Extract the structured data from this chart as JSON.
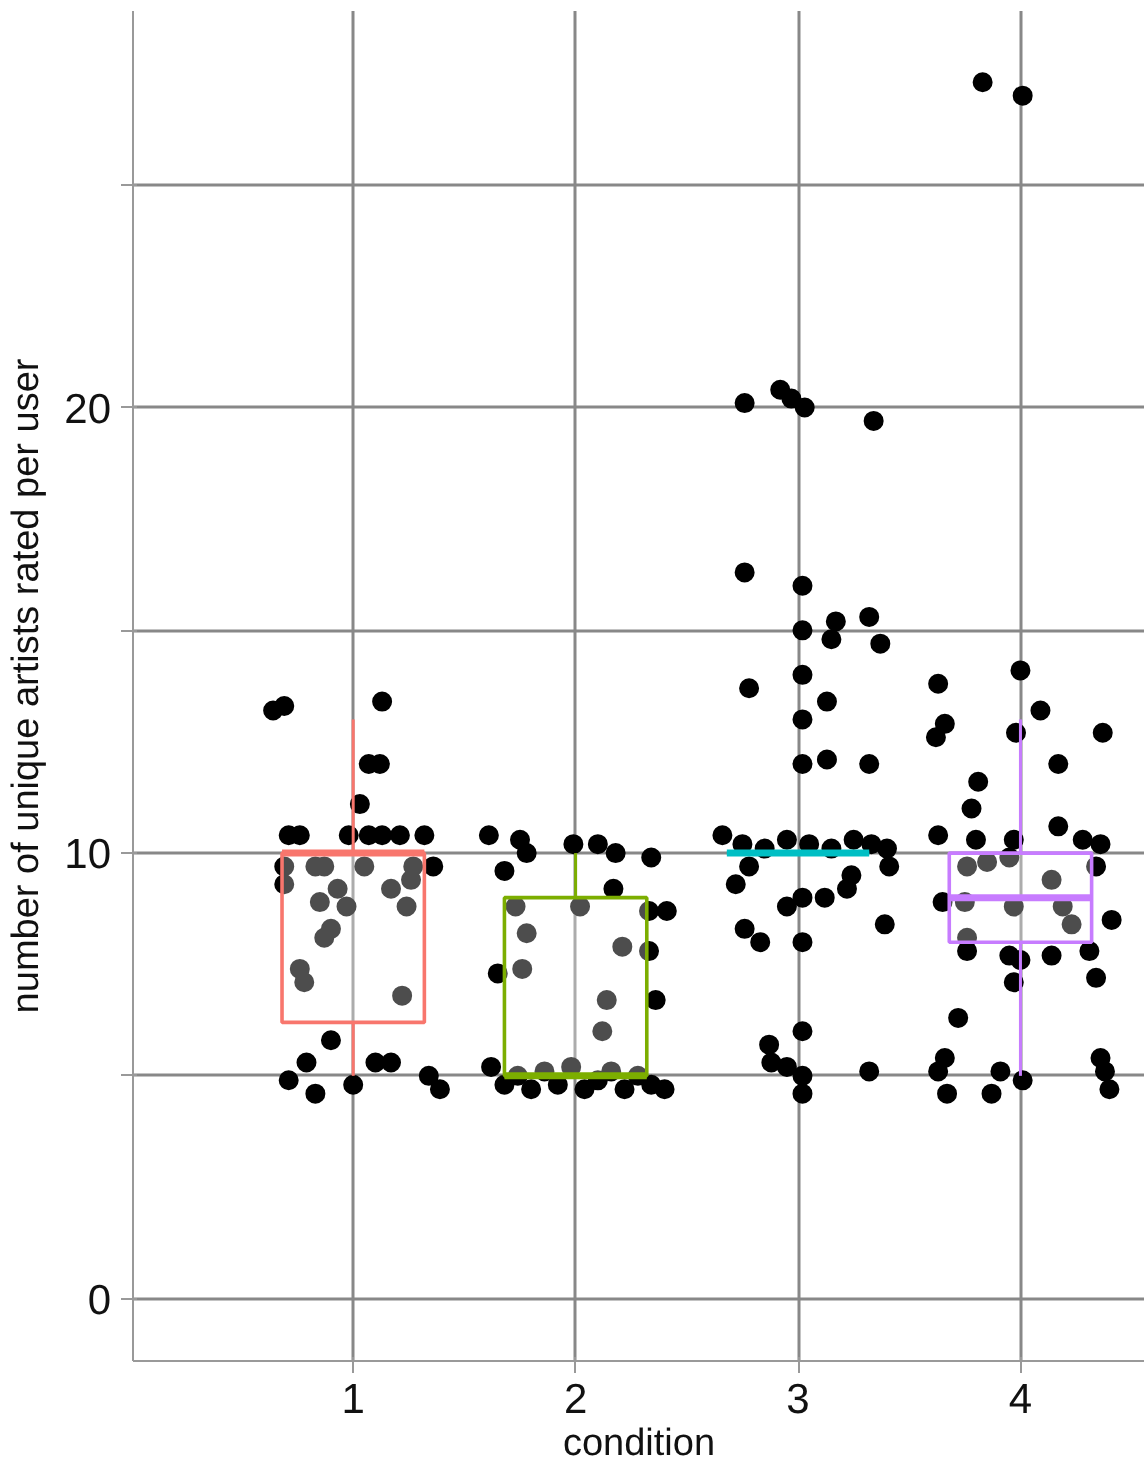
{
  "chart_data": {
    "type": "box",
    "xlabel": "condition",
    "ylabel": "number of unique artists rated per user",
    "x": [
      1,
      2,
      3,
      4
    ],
    "colors": [
      "#f8766d",
      "#7cae00",
      "#00bfc4",
      "#c77cff"
    ],
    "boxes": [
      {
        "low": 5,
        "q1": 6.2,
        "median": 10,
        "q3": 10,
        "high": 13
      },
      {
        "low": 5,
        "q1": 5,
        "median": 5,
        "q3": 9,
        "high": 10
      },
      {
        "low": 10,
        "q1": 10,
        "median": 10,
        "q3": 10,
        "high": 10
      },
      {
        "low": 5,
        "q1": 8,
        "median": 9,
        "q3": 10,
        "high": 13
      }
    ],
    "xlim": [
      0.01,
      4.56
    ],
    "xticks": [
      1,
      2,
      3,
      4
    ],
    "ylim": [
      -1.4,
      28.9
    ],
    "yticks": [
      0,
      {
        "value": 5,
        "label": null
      },
      10,
      {
        "value": 15,
        "label": null
      },
      20,
      {
        "value": 25,
        "label": null
      }
    ],
    "grid": true,
    "marker": "circle",
    "series": [
      {
        "type": "scatter",
        "color": "#000000",
        "x": [
          0.64,
          0.69,
          1.13,
          1.07,
          1.12,
          1.03,
          0.71,
          0.76,
          0.98,
          1.07,
          1.13,
          1.21,
          1.32,
          0.69,
          0.83,
          0.87,
          1.05,
          1.27,
          1.36,
          0.69,
          0.93,
          1.17,
          1.26,
          0.85,
          0.97,
          1.24,
          0.9,
          0.87,
          0.76,
          0.78,
          1.22,
          0.9,
          0.71,
          0.79,
          0.83,
          1.0,
          1.1,
          1.17,
          1.34,
          1.39,
          1.61,
          1.75,
          1.68,
          1.78,
          1.99,
          2.1,
          2.18,
          2.34,
          2.17,
          1.73,
          2.02,
          2.33,
          2.41,
          1.78,
          2.21,
          2.33,
          1.65,
          1.76,
          2.36,
          2.14,
          2.12,
          1.62,
          1.68,
          1.74,
          1.8,
          1.86,
          1.92,
          1.98,
          2.04,
          2.1,
          2.16,
          2.22,
          2.28,
          2.34,
          2.4,
          2.76,
          2.92,
          2.97,
          3.03,
          3.34,
          2.76,
          3.02,
          3.02,
          3.17,
          3.15,
          3.32,
          3.37,
          2.78,
          3.02,
          3.13,
          3.02,
          3.02,
          3.13,
          3.32,
          2.66,
          2.75,
          2.85,
          2.95,
          3.05,
          3.15,
          3.25,
          3.33,
          3.4,
          2.72,
          2.78,
          2.95,
          3.02,
          3.12,
          3.22,
          3.24,
          3.39,
          3.41,
          2.76,
          2.83,
          3.02,
          3.02,
          2.87,
          2.88,
          2.95,
          3.02,
          3.02,
          3.32,
          3.83,
          4.01,
          4.0,
          3.63,
          3.66,
          3.62,
          3.98,
          4.09,
          4.37,
          4.17,
          3.81,
          3.78,
          3.63,
          3.8,
          3.97,
          4.17,
          4.28,
          4.36,
          3.76,
          3.85,
          3.95,
          4.14,
          4.34,
          3.65,
          3.75,
          3.97,
          4.19,
          4.23,
          3.76,
          4.41,
          3.76,
          3.95,
          4.14,
          4.31,
          4.0,
          3.97,
          4.34,
          3.72,
          3.66,
          3.63,
          3.67,
          3.87,
          3.91,
          4.01,
          4.36,
          4.38,
          4.4
        ],
        "values": [
          13.2,
          13.3,
          13.4,
          12.0,
          12.0,
          11.1,
          10.4,
          10.4,
          10.4,
          10.4,
          10.4,
          10.4,
          10.4,
          9.7,
          9.7,
          9.7,
          9.7,
          9.7,
          9.7,
          9.3,
          9.2,
          9.2,
          9.4,
          8.9,
          8.8,
          8.8,
          8.3,
          8.1,
          7.4,
          7.1,
          6.8,
          5.8,
          4.9,
          5.3,
          4.6,
          4.8,
          5.3,
          5.3,
          5.0,
          4.7,
          10.4,
          10.3,
          9.6,
          10.0,
          10.2,
          10.2,
          10.0,
          9.9,
          9.2,
          8.8,
          8.8,
          8.7,
          8.7,
          8.2,
          7.9,
          7.8,
          7.3,
          7.4,
          6.7,
          6.7,
          6.0,
          5.2,
          4.8,
          5.0,
          4.7,
          5.1,
          4.8,
          5.2,
          4.7,
          4.9,
          5.1,
          4.7,
          5.0,
          4.8,
          4.7,
          20.1,
          20.4,
          20.2,
          20.0,
          19.7,
          16.3,
          16.0,
          15.0,
          15.2,
          14.8,
          15.3,
          14.7,
          13.7,
          14.0,
          13.4,
          13.0,
          12.0,
          12.1,
          12.0,
          10.4,
          10.2,
          10.1,
          10.3,
          10.2,
          10.1,
          10.3,
          10.2,
          10.1,
          9.3,
          9.7,
          8.8,
          9.0,
          9.0,
          9.2,
          9.5,
          8.4,
          9.7,
          8.3,
          8.0,
          8.0,
          6.0,
          5.7,
          5.3,
          5.2,
          5.0,
          4.6,
          5.1,
          27.3,
          27.0,
          14.1,
          13.8,
          12.9,
          12.6,
          12.7,
          13.2,
          12.7,
          12.0,
          11.6,
          11.0,
          10.4,
          10.3,
          10.3,
          10.6,
          10.3,
          10.2,
          9.7,
          9.8,
          9.9,
          9.4,
          9.7,
          8.9,
          8.9,
          8.8,
          8.8,
          8.4,
          8.1,
          8.5,
          7.8,
          7.7,
          7.7,
          7.8,
          7.6,
          7.1,
          7.2,
          6.3,
          5.4,
          5.1,
          4.6,
          4.6,
          5.1,
          4.9,
          5.4,
          5.1,
          4.7
        ]
      }
    ]
  }
}
